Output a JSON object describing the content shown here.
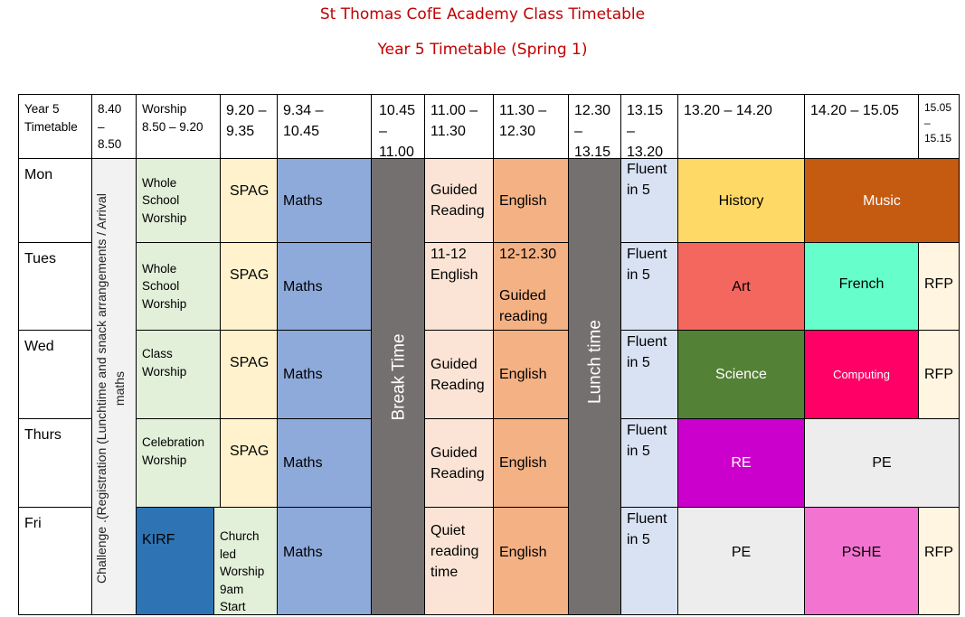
{
  "header": {
    "title": "St Thomas CofE Academy Class Timetable",
    "subtitle": "Year 5 Timetable (Spring 1)"
  },
  "times": {
    "corner": "Year 5\nTimetable",
    "t1": "8.40\n–\n8.50",
    "t2": "Worship\n8.50 – 9.20",
    "t3": "9.20 –\n9.35",
    "t4": "9.34 –\n10.45",
    "t5": "10.45\n–\n11.00",
    "t6": "11.00 –\n11.30",
    "t7": "11.30 –\n12.30",
    "t8": "12.30\n–\n13.15",
    "t9": "13.15\n–\n13.20",
    "t10": "13.20 – 14.20",
    "t11": "14.20 – 15.05",
    "t12": "15.05\n–\n15.15"
  },
  "days": [
    "Mon",
    "Tues",
    "Wed",
    "Thurs",
    "Fri"
  ],
  "registration": "Challenge  .(Registration (Lunchtime and snack arrangements / Arrival\nmaths",
  "break": "Break Time",
  "lunch": "Lunch time",
  "mon": {
    "worship": "Whole\nSchool\nWorship",
    "spag": "SPAG",
    "maths": "Maths",
    "gr": "Guided\nReading",
    "eng": "English",
    "fluent": "Fluent\nin 5",
    "p1": "History",
    "p2": "Music"
  },
  "tue": {
    "worship": "Whole\nSchool\nWorship",
    "spag": "SPAG",
    "maths": "Maths",
    "gr": "11-12\nEnglish",
    "eng": "12-12.30\n\nGuided\nreading",
    "fluent": "Fluent\nin 5",
    "p1": "Art",
    "p2": "French",
    "p3": "RFP"
  },
  "wed": {
    "worship": "Class\nWorship",
    "spag": "SPAG",
    "maths": "Maths",
    "gr": "Guided\nReading",
    "eng": "English",
    "fluent": "Fluent\nin 5",
    "p1": "Science",
    "p2": "Computing",
    "p3": "RFP"
  },
  "thu": {
    "worship": "Celebration\nWorship",
    "spag": "SPAG",
    "maths": "Maths",
    "gr": "Guided\nReading",
    "eng": "English",
    "fluent": "Fluent\nin 5",
    "p1": "RE",
    "p2": "PE"
  },
  "fri": {
    "kirf": "KIRF",
    "worship": "Church\nled\nWorship\n9am\nStart",
    "maths": "Maths",
    "gr": "Quiet\nreading\ntime",
    "eng": "English",
    "fluent": "Fluent\nin 5",
    "p1": "PE",
    "p2": "PSHE",
    "p3": "RFP"
  }
}
